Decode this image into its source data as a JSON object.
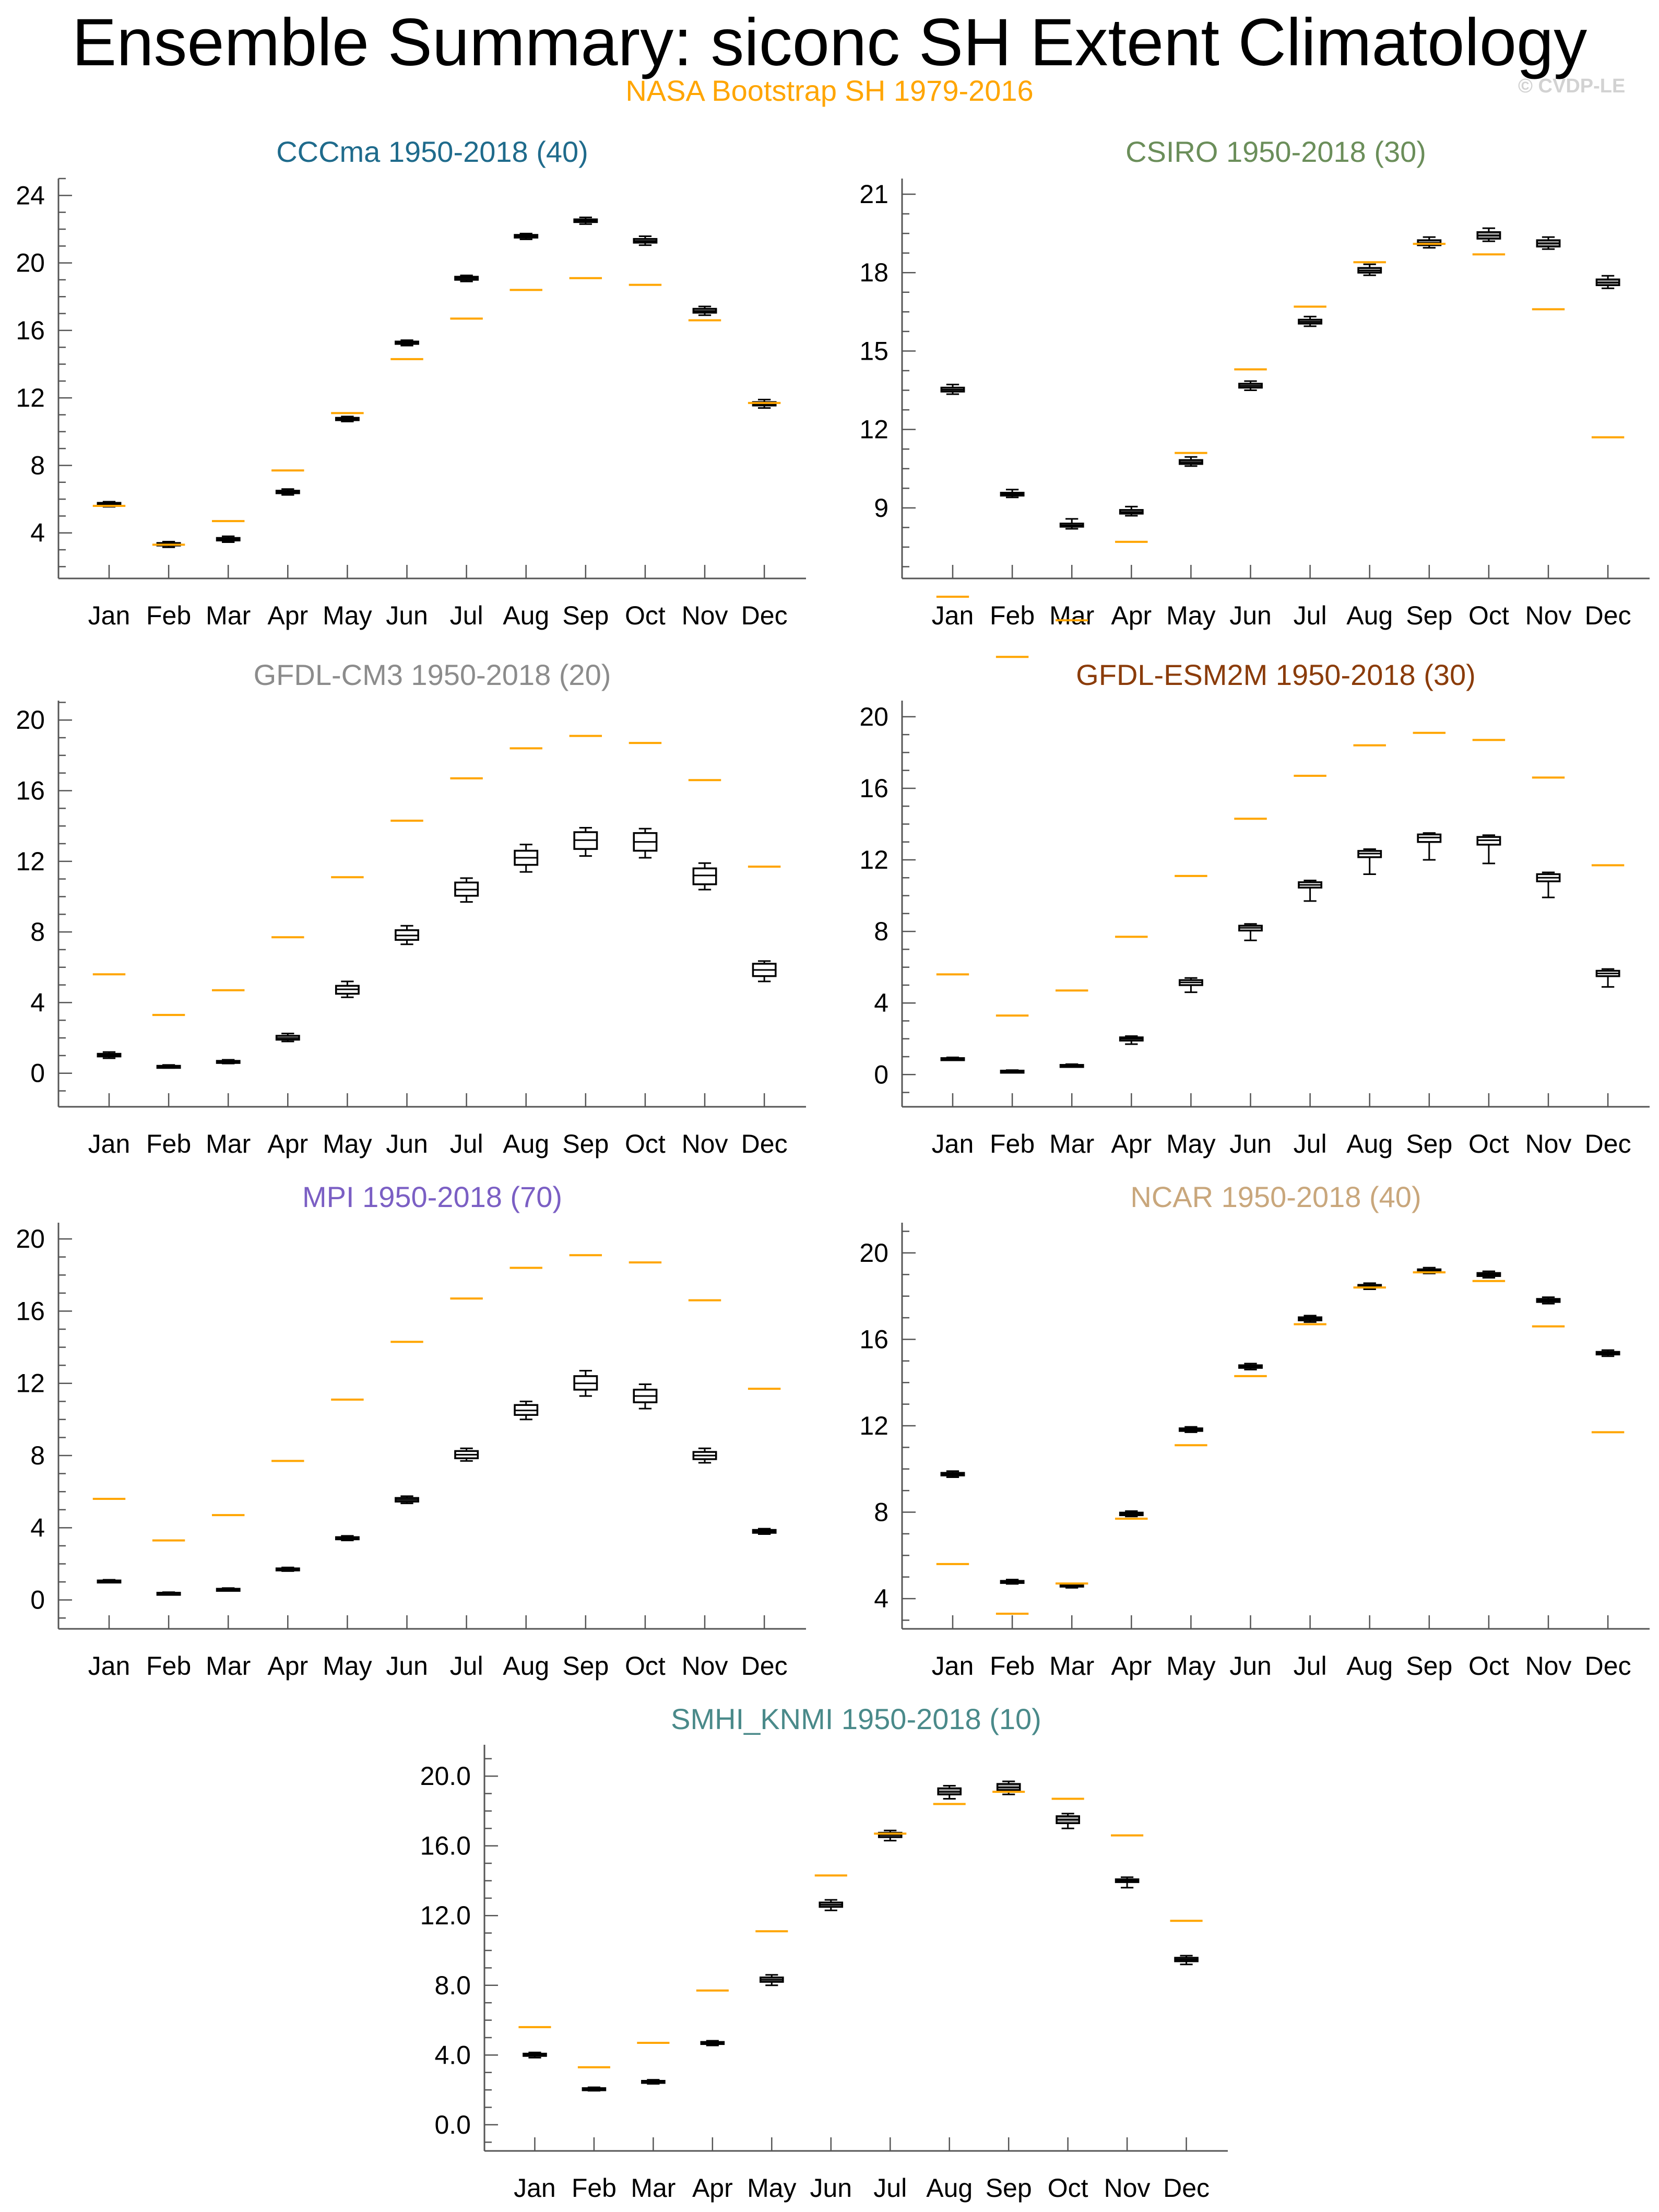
{
  "title": "Ensemble Summary: siconc SH Extent Climatology",
  "observations_label": "NASA Bootstrap SH 1979-2016",
  "copyright": "© CVDP-LE",
  "colors": {
    "observations": "#ffa500",
    "box_fill": "#a8a8a8",
    "axis": "#000000"
  },
  "chart_data": [
    {
      "type": "box",
      "title": "CCCma 1950-2018 (40)",
      "title_color": "#1f6b8c",
      "categories": [
        "Jan",
        "Feb",
        "Mar",
        "Apr",
        "May",
        "Jun",
        "Jul",
        "Aug",
        "Sep",
        "Oct",
        "Nov",
        "Dec"
      ],
      "yticks": [
        "4",
        "8",
        "12",
        "16",
        "20",
        "24"
      ],
      "ylim": [
        1.3,
        25
      ],
      "filled": true,
      "observations": [
        5.6,
        3.3,
        4.7,
        7.7,
        11.1,
        14.3,
        16.7,
        18.4,
        19.1,
        18.7,
        16.6,
        11.7
      ],
      "boxes": [
        {
          "min": 5.55,
          "q1": 5.62,
          "median": 5.7,
          "q3": 5.78,
          "max": 5.85
        },
        {
          "min": 3.15,
          "q1": 3.25,
          "median": 3.32,
          "q3": 3.4,
          "max": 3.48
        },
        {
          "min": 3.45,
          "q1": 3.55,
          "median": 3.62,
          "q3": 3.7,
          "max": 3.8
        },
        {
          "min": 6.25,
          "q1": 6.35,
          "median": 6.42,
          "q3": 6.5,
          "max": 6.6
        },
        {
          "min": 10.6,
          "q1": 10.68,
          "median": 10.75,
          "q3": 10.82,
          "max": 10.9
        },
        {
          "min": 15.1,
          "q1": 15.2,
          "median": 15.27,
          "q3": 15.34,
          "max": 15.42
        },
        {
          "min": 18.9,
          "q1": 19.0,
          "median": 19.1,
          "q3": 19.18,
          "max": 19.26
        },
        {
          "min": 21.4,
          "q1": 21.5,
          "median": 21.58,
          "q3": 21.66,
          "max": 21.74
        },
        {
          "min": 22.3,
          "q1": 22.42,
          "median": 22.5,
          "q3": 22.58,
          "max": 22.7
        },
        {
          "min": 21.05,
          "q1": 21.2,
          "median": 21.3,
          "q3": 21.42,
          "max": 21.58
        },
        {
          "min": 16.9,
          "q1": 17.05,
          "median": 17.15,
          "q3": 17.28,
          "max": 17.42
        },
        {
          "min": 11.4,
          "q1": 11.55,
          "median": 11.65,
          "q3": 11.75,
          "max": 11.9
        }
      ]
    },
    {
      "type": "box",
      "title": "CSIRO 1950-2018 (30)",
      "title_color": "#6b8e5a",
      "categories": [
        "Jan",
        "Feb",
        "Mar",
        "Apr",
        "May",
        "Jun",
        "Jul",
        "Aug",
        "Sep",
        "Oct",
        "Nov",
        "Dec"
      ],
      "yticks": [
        "9",
        "12",
        "15",
        "18",
        "21"
      ],
      "ylim": [
        6.3,
        21.6
      ],
      "filled": true,
      "observations": [
        5.6,
        3.3,
        4.7,
        7.7,
        11.1,
        14.3,
        16.7,
        18.4,
        19.1,
        18.7,
        16.6,
        11.7
      ],
      "boxes": [
        {
          "min": 13.35,
          "q1": 13.45,
          "median": 13.52,
          "q3": 13.6,
          "max": 13.72
        },
        {
          "min": 9.4,
          "q1": 9.47,
          "median": 9.52,
          "q3": 9.58,
          "max": 9.7
        },
        {
          "min": 8.2,
          "q1": 8.28,
          "median": 8.33,
          "q3": 8.4,
          "max": 8.58
        },
        {
          "min": 8.7,
          "q1": 8.78,
          "median": 8.84,
          "q3": 8.92,
          "max": 9.05
        },
        {
          "min": 10.6,
          "q1": 10.68,
          "median": 10.75,
          "q3": 10.83,
          "max": 10.95
        },
        {
          "min": 13.5,
          "q1": 13.6,
          "median": 13.67,
          "q3": 13.75,
          "max": 13.85
        },
        {
          "min": 15.95,
          "q1": 16.05,
          "median": 16.12,
          "q3": 16.2,
          "max": 16.32
        },
        {
          "min": 17.9,
          "q1": 18.0,
          "median": 18.08,
          "q3": 18.18,
          "max": 18.32
        },
        {
          "min": 18.95,
          "q1": 19.05,
          "median": 19.14,
          "q3": 19.24,
          "max": 19.36
        },
        {
          "min": 19.2,
          "q1": 19.3,
          "median": 19.42,
          "q3": 19.55,
          "max": 19.7
        },
        {
          "min": 18.9,
          "q1": 19.0,
          "median": 19.12,
          "q3": 19.24,
          "max": 19.36
        },
        {
          "min": 17.4,
          "q1": 17.52,
          "median": 17.62,
          "q3": 17.74,
          "max": 17.88
        }
      ]
    },
    {
      "type": "box",
      "title": "GFDL-CM3 1950-2018 (20)",
      "title_color": "#8c8c8c",
      "categories": [
        "Jan",
        "Feb",
        "Mar",
        "Apr",
        "May",
        "Jun",
        "Jul",
        "Aug",
        "Sep",
        "Oct",
        "Nov",
        "Dec"
      ],
      "yticks": [
        "0",
        "4",
        "8",
        "12",
        "16",
        "20"
      ],
      "ylim": [
        -1.9,
        21.1
      ],
      "filled": false,
      "observations": [
        5.6,
        3.3,
        4.7,
        7.7,
        11.1,
        14.3,
        16.7,
        18.4,
        19.1,
        18.7,
        16.6,
        11.7
      ],
      "boxes": [
        {
          "min": 0.85,
          "q1": 0.95,
          "median": 1.02,
          "q3": 1.1,
          "max": 1.2
        },
        {
          "min": 0.3,
          "q1": 0.35,
          "median": 0.38,
          "q3": 0.42,
          "max": 0.47
        },
        {
          "min": 0.55,
          "q1": 0.61,
          "median": 0.66,
          "q3": 0.7,
          "max": 0.76
        },
        {
          "min": 1.8,
          "q1": 1.9,
          "median": 2.0,
          "q3": 2.12,
          "max": 2.25
        },
        {
          "min": 4.3,
          "q1": 4.5,
          "median": 4.75,
          "q3": 4.95,
          "max": 5.2
        },
        {
          "min": 7.3,
          "q1": 7.55,
          "median": 7.8,
          "q3": 8.1,
          "max": 8.35
        },
        {
          "min": 9.7,
          "q1": 10.05,
          "median": 10.4,
          "q3": 10.8,
          "max": 11.05
        },
        {
          "min": 11.4,
          "q1": 11.8,
          "median": 12.2,
          "q3": 12.6,
          "max": 12.95
        },
        {
          "min": 12.3,
          "q1": 12.7,
          "median": 13.2,
          "q3": 13.65,
          "max": 13.9
        },
        {
          "min": 12.2,
          "q1": 12.6,
          "median": 13.1,
          "q3": 13.6,
          "max": 13.85
        },
        {
          "min": 10.4,
          "q1": 10.7,
          "median": 11.2,
          "q3": 11.6,
          "max": 11.9
        },
        {
          "min": 5.2,
          "q1": 5.5,
          "median": 5.85,
          "q3": 6.2,
          "max": 6.35
        }
      ]
    },
    {
      "type": "box",
      "title": "GFDL-ESM2M 1950-2018 (30)",
      "title_color": "#8b3c0a",
      "categories": [
        "Jan",
        "Feb",
        "Mar",
        "Apr",
        "May",
        "Jun",
        "Jul",
        "Aug",
        "Sep",
        "Oct",
        "Nov",
        "Dec"
      ],
      "yticks": [
        "0",
        "4",
        "8",
        "12",
        "16",
        "20"
      ],
      "ylim": [
        -1.8,
        20.9
      ],
      "filled": false,
      "observations": [
        5.6,
        3.3,
        4.7,
        7.7,
        11.1,
        14.3,
        16.7,
        18.4,
        19.1,
        18.7,
        16.6,
        11.7
      ],
      "boxes": [
        {
          "min": 0.8,
          "q1": 0.84,
          "median": 0.88,
          "q3": 0.92,
          "max": 0.96
        },
        {
          "min": 0.15,
          "q1": 0.18,
          "median": 0.2,
          "q3": 0.22,
          "max": 0.25
        },
        {
          "min": 0.42,
          "q1": 0.46,
          "median": 0.5,
          "q3": 0.54,
          "max": 0.58
        },
        {
          "min": 1.7,
          "q1": 1.9,
          "median": 2.0,
          "q3": 2.08,
          "max": 2.15
        },
        {
          "min": 4.6,
          "q1": 5.0,
          "median": 5.15,
          "q3": 5.28,
          "max": 5.4
        },
        {
          "min": 7.5,
          "q1": 8.05,
          "median": 8.2,
          "q3": 8.32,
          "max": 8.42
        },
        {
          "min": 9.7,
          "q1": 10.45,
          "median": 10.6,
          "q3": 10.75,
          "max": 10.85
        },
        {
          "min": 11.2,
          "q1": 12.15,
          "median": 12.35,
          "q3": 12.5,
          "max": 12.6
        },
        {
          "min": 12.0,
          "q1": 13.0,
          "median": 13.25,
          "q3": 13.42,
          "max": 13.5
        },
        {
          "min": 11.8,
          "q1": 12.85,
          "median": 13.1,
          "q3": 13.28,
          "max": 13.38
        },
        {
          "min": 9.9,
          "q1": 10.8,
          "median": 11.0,
          "q3": 11.2,
          "max": 11.3
        },
        {
          "min": 4.9,
          "q1": 5.5,
          "median": 5.65,
          "q3": 5.8,
          "max": 5.9
        }
      ]
    },
    {
      "type": "box",
      "title": "MPI 1950-2018 (70)",
      "title_color": "#7b5fc4",
      "categories": [
        "Jan",
        "Feb",
        "Mar",
        "Apr",
        "May",
        "Jun",
        "Jul",
        "Aug",
        "Sep",
        "Oct",
        "Nov",
        "Dec"
      ],
      "yticks": [
        "0",
        "4",
        "8",
        "12",
        "16",
        "20"
      ],
      "ylim": [
        -1.6,
        20.9
      ],
      "filled": false,
      "observations": [
        5.6,
        3.3,
        4.7,
        7.7,
        11.1,
        14.3,
        16.7,
        18.4,
        19.1,
        18.7,
        16.6,
        11.7
      ],
      "boxes": [
        {
          "min": 0.98,
          "q1": 1.02,
          "median": 1.05,
          "q3": 1.08,
          "max": 1.12
        },
        {
          "min": 0.33,
          "q1": 0.36,
          "median": 0.38,
          "q3": 0.4,
          "max": 0.43
        },
        {
          "min": 0.52,
          "q1": 0.56,
          "median": 0.59,
          "q3": 0.62,
          "max": 0.66
        },
        {
          "min": 1.6,
          "q1": 1.65,
          "median": 1.7,
          "q3": 1.75,
          "max": 1.8
        },
        {
          "min": 3.3,
          "q1": 3.36,
          "median": 3.42,
          "q3": 3.48,
          "max": 3.55
        },
        {
          "min": 5.35,
          "q1": 5.45,
          "median": 5.55,
          "q3": 5.65,
          "max": 5.75
        },
        {
          "min": 7.7,
          "q1": 7.85,
          "median": 8.05,
          "q3": 8.25,
          "max": 8.4
        },
        {
          "min": 10.0,
          "q1": 10.25,
          "median": 10.5,
          "q3": 10.8,
          "max": 11.0
        },
        {
          "min": 11.3,
          "q1": 11.65,
          "median": 12.0,
          "q3": 12.4,
          "max": 12.7
        },
        {
          "min": 10.6,
          "q1": 10.95,
          "median": 11.3,
          "q3": 11.65,
          "max": 11.95
        },
        {
          "min": 7.6,
          "q1": 7.8,
          "median": 8.0,
          "q3": 8.2,
          "max": 8.4
        },
        {
          "min": 3.65,
          "q1": 3.72,
          "median": 3.8,
          "q3": 3.88,
          "max": 3.95
        }
      ]
    },
    {
      "type": "box",
      "title": "NCAR 1950-2018 (40)",
      "title_color": "#c9a77c",
      "categories": [
        "Jan",
        "Feb",
        "Mar",
        "Apr",
        "May",
        "Jun",
        "Jul",
        "Aug",
        "Sep",
        "Oct",
        "Nov",
        "Dec"
      ],
      "yticks": [
        "4",
        "8",
        "12",
        "16",
        "20"
      ],
      "ylim": [
        2.6,
        21.4
      ],
      "filled": true,
      "observations": [
        5.6,
        3.3,
        4.7,
        7.7,
        11.1,
        14.3,
        16.7,
        18.4,
        19.1,
        18.7,
        16.6,
        11.7
      ],
      "boxes": [
        {
          "min": 9.62,
          "q1": 9.7,
          "median": 9.76,
          "q3": 9.82,
          "max": 9.9
        },
        {
          "min": 4.68,
          "q1": 4.74,
          "median": 4.78,
          "q3": 4.82,
          "max": 4.88
        },
        {
          "min": 4.5,
          "q1": 4.56,
          "median": 4.6,
          "q3": 4.65,
          "max": 4.7
        },
        {
          "min": 7.8,
          "q1": 7.86,
          "median": 7.92,
          "q3": 7.98,
          "max": 8.05
        },
        {
          "min": 11.7,
          "q1": 11.76,
          "median": 11.82,
          "q3": 11.88,
          "max": 11.95
        },
        {
          "min": 14.6,
          "q1": 14.68,
          "median": 14.74,
          "q3": 14.8,
          "max": 14.88
        },
        {
          "min": 16.8,
          "q1": 16.88,
          "median": 16.95,
          "q3": 17.02,
          "max": 17.1
        },
        {
          "min": 18.32,
          "q1": 18.4,
          "median": 18.46,
          "q3": 18.52,
          "max": 18.6
        },
        {
          "min": 19.05,
          "q1": 19.12,
          "median": 19.18,
          "q3": 19.24,
          "max": 19.32
        },
        {
          "min": 18.85,
          "q1": 18.93,
          "median": 19.0,
          "q3": 19.07,
          "max": 19.15
        },
        {
          "min": 17.65,
          "q1": 17.73,
          "median": 17.8,
          "q3": 17.87,
          "max": 17.95
        },
        {
          "min": 15.22,
          "q1": 15.3,
          "median": 15.36,
          "q3": 15.42,
          "max": 15.5
        }
      ]
    },
    {
      "type": "box",
      "title": "SMHI_KNMI 1950-2018 (10)",
      "title_color": "#4a8a8a",
      "categories": [
        "Jan",
        "Feb",
        "Mar",
        "Apr",
        "May",
        "Jun",
        "Jul",
        "Aug",
        "Sep",
        "Oct",
        "Nov",
        "Dec"
      ],
      "yticks": [
        "0.0",
        "4.0",
        "8.0",
        "12.0",
        "16.0",
        "20.0"
      ],
      "ylim": [
        -1.5,
        21.8
      ],
      "filled": true,
      "observations": [
        5.6,
        3.3,
        4.7,
        7.7,
        11.1,
        14.3,
        16.7,
        18.4,
        19.1,
        18.7,
        16.6,
        11.7
      ],
      "boxes": [
        {
          "min": 3.85,
          "q1": 3.95,
          "median": 4.0,
          "q3": 4.08,
          "max": 4.15
        },
        {
          "min": 1.95,
          "q1": 2.0,
          "median": 2.05,
          "q3": 2.1,
          "max": 2.15
        },
        {
          "min": 2.35,
          "q1": 2.42,
          "median": 2.47,
          "q3": 2.52,
          "max": 2.58
        },
        {
          "min": 4.55,
          "q1": 4.63,
          "median": 4.68,
          "q3": 4.75,
          "max": 4.82
        },
        {
          "min": 8.0,
          "q1": 8.2,
          "median": 8.32,
          "q3": 8.45,
          "max": 8.6
        },
        {
          "min": 12.3,
          "q1": 12.5,
          "median": 12.62,
          "q3": 12.75,
          "max": 12.9
        },
        {
          "min": 16.3,
          "q1": 16.5,
          "median": 16.62,
          "q3": 16.75,
          "max": 16.88
        },
        {
          "min": 18.7,
          "q1": 18.95,
          "median": 19.1,
          "q3": 19.3,
          "max": 19.45
        },
        {
          "min": 18.95,
          "q1": 19.2,
          "median": 19.35,
          "q3": 19.55,
          "max": 19.7
        },
        {
          "min": 17.0,
          "q1": 17.3,
          "median": 17.5,
          "q3": 17.7,
          "max": 17.85
        },
        {
          "min": 13.6,
          "q1": 13.92,
          "median": 14.0,
          "q3": 14.08,
          "max": 14.2
        },
        {
          "min": 9.2,
          "q1": 9.38,
          "median": 9.48,
          "q3": 9.58,
          "max": 9.7
        }
      ]
    }
  ]
}
